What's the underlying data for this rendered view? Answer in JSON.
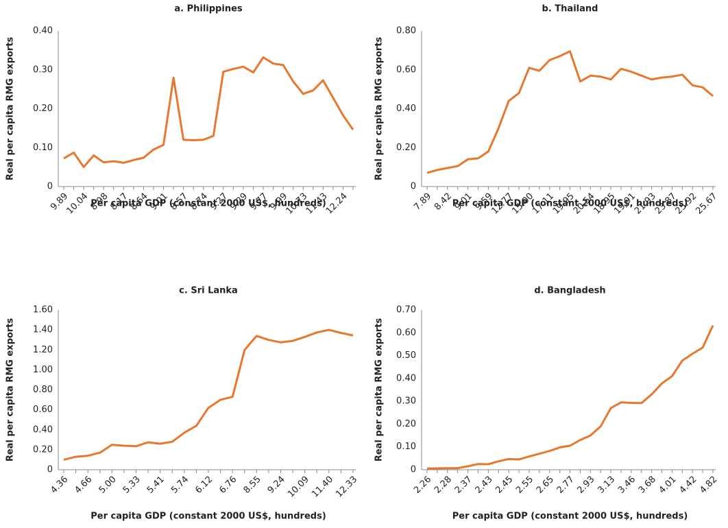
{
  "chart_data": [
    {
      "type": "line",
      "title": "a. Philippines",
      "x_label": "Per capita GDP (constant 2000 US$, hundreds)",
      "y_label": "Real per capita RMG exports",
      "color": "#e8772e",
      "categories": [
        "9.89",
        null,
        "10.04",
        null,
        "8.98",
        null,
        "8.17",
        null,
        "8.64",
        null,
        "9.01",
        null,
        "8.57",
        null,
        "8.74",
        null,
        "9.27",
        null,
        "9.29",
        null,
        "9.77",
        null,
        "9.99",
        null,
        "10.73",
        null,
        "11.43",
        null,
        "12.24",
        null
      ],
      "values": [
        0.072,
        0.087,
        0.05,
        0.08,
        0.062,
        0.065,
        0.061,
        0.068,
        0.074,
        0.095,
        0.107,
        0.28,
        0.12,
        0.119,
        0.12,
        0.13,
        0.295,
        0.302,
        0.308,
        0.293,
        0.332,
        0.316,
        0.312,
        0.27,
        0.238,
        0.247,
        0.273,
        0.228,
        0.183,
        0.146
      ],
      "ylim": [
        0,
        0.4
      ],
      "yticks": [
        0,
        {
          "value": 0.1,
          "label": "0.10"
        },
        {
          "value": 0.2,
          "label": "0.20"
        },
        {
          "value": 0.3,
          "label": "0.30"
        },
        {
          "value": 0.4,
          "label": "0.40"
        }
      ]
    },
    {
      "type": "line",
      "title": "b. Thailand",
      "x_label": "Per capita GDP (constant 2000 US$, hundreds)",
      "y_label": "Real per capita RMG exports",
      "color": "#e8772e",
      "categories": [
        "7.89",
        null,
        "8.42",
        null,
        "9.01",
        null,
        "9.59",
        null,
        "12.77",
        null,
        "15.00",
        null,
        "17.11",
        null,
        "19.95",
        null,
        "20.54",
        null,
        "18.95",
        null,
        "19.91",
        null,
        "21.93",
        null,
        "23.87",
        null,
        "25.92",
        null,
        "25.67"
      ],
      "values": [
        0.07,
        0.085,
        0.095,
        0.105,
        0.14,
        0.145,
        0.18,
        0.3,
        0.44,
        0.48,
        0.61,
        0.595,
        0.65,
        0.67,
        0.695,
        0.54,
        0.57,
        0.565,
        0.55,
        0.605,
        0.59,
        0.57,
        0.55,
        0.56,
        0.565,
        0.575,
        0.52,
        0.51,
        0.465
      ],
      "ylim": [
        0,
        0.8
      ],
      "yticks": [
        0,
        {
          "value": 0.2,
          "label": "0.20"
        },
        {
          "value": 0.4,
          "label": "0.40"
        },
        {
          "value": 0.6,
          "label": "0.60"
        },
        {
          "value": 0.8,
          "label": "0.80"
        }
      ]
    },
    {
      "type": "line",
      "title": "c. Sri Lanka",
      "x_label": "Per capita GDP (constant 2000 US$, hundreds)",
      "y_label": "Real per capita RMG exports",
      "color": "#e8772e",
      "categories": [
        "4.36",
        null,
        "4.66",
        null,
        "5.00",
        null,
        "5.33",
        null,
        "5.41",
        null,
        "5.74",
        null,
        "6.12",
        null,
        "6.76",
        null,
        "8.55",
        null,
        "9.24",
        null,
        "10.09",
        null,
        "11.40",
        null,
        "12.33"
      ],
      "values": [
        0.1,
        0.13,
        0.14,
        0.17,
        0.25,
        0.24,
        0.235,
        0.275,
        0.26,
        0.28,
        0.37,
        0.44,
        0.62,
        0.7,
        0.73,
        1.2,
        1.34,
        1.3,
        1.275,
        1.29,
        1.33,
        1.375,
        1.4,
        1.37,
        1.345
      ],
      "ylim": [
        0,
        1.6
      ],
      "yticks": [
        0,
        {
          "value": 0.2,
          "label": "0.20"
        },
        {
          "value": 0.4,
          "label": "0.40"
        },
        {
          "value": 0.6,
          "label": "0.60"
        },
        {
          "value": 0.8,
          "label": "0.80"
        },
        {
          "value": 1.0,
          "label": "1.00"
        },
        {
          "value": 1.2,
          "label": "1.20"
        },
        {
          "value": 1.4,
          "label": "1.40"
        },
        {
          "value": 1.6,
          "label": "1.60"
        }
      ]
    },
    {
      "type": "line",
      "title": "d. Bangladesh",
      "x_label": "Per capita GDP (constant 2000 US$, hundreds)",
      "y_label": "Real per capita RMG exports",
      "color": "#e8772e",
      "categories": [
        "2.26",
        null,
        "2.28",
        null,
        "2.37",
        null,
        "2.43",
        null,
        "2.45",
        null,
        "2.55",
        null,
        "2.65",
        null,
        "2.77",
        null,
        "2.93",
        null,
        "3.13",
        null,
        "3.46",
        null,
        "3.68",
        null,
        "4.01",
        null,
        "4.42",
        null,
        "4.82"
      ],
      "values": [
        0.005,
        0.006,
        0.007,
        0.007,
        0.015,
        0.025,
        0.024,
        0.037,
        0.047,
        0.045,
        0.058,
        0.07,
        0.082,
        0.098,
        0.105,
        0.13,
        0.15,
        0.19,
        0.27,
        0.295,
        0.293,
        0.292,
        0.33,
        0.378,
        0.41,
        0.478,
        0.508,
        0.535,
        0.632
      ],
      "ylim": [
        0,
        0.7
      ],
      "yticks": [
        0,
        {
          "value": 0.1,
          "label": "0.10"
        },
        {
          "value": 0.2,
          "label": "0.20"
        },
        {
          "value": 0.3,
          "label": "0.30"
        },
        {
          "value": 0.4,
          "label": "0.40"
        },
        {
          "value": 0.5,
          "label": "0.50"
        },
        {
          "value": 0.6,
          "label": "0.60"
        },
        {
          "value": 0.7,
          "label": "0.70"
        }
      ]
    }
  ]
}
